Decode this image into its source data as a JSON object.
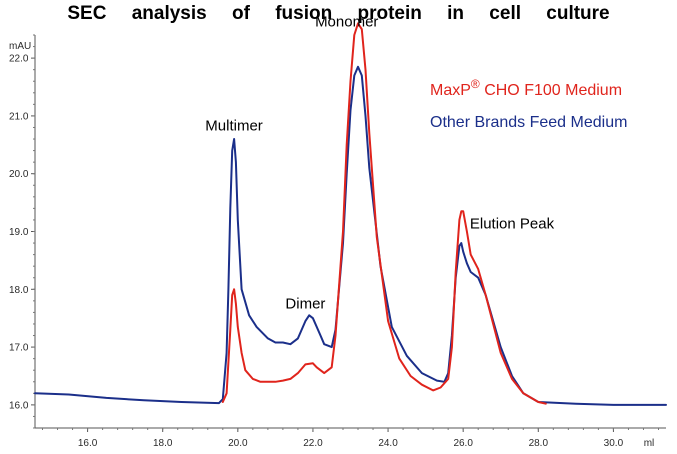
{
  "title": "SEC analysis of fusion protein in cell culture",
  "chart_data": {
    "type": "line",
    "title": "SEC analysis of fusion protein in cell culture",
    "xlabel": "ml",
    "ylabel": "mAU",
    "xlim": [
      14.6,
      31.4
    ],
    "ylim": [
      15.6,
      22.4
    ],
    "x_ticks": [
      "16.0",
      "18.0",
      "20.0",
      "22.0",
      "24.0",
      "26.0",
      "28.0",
      "30.0"
    ],
    "y_ticks": [
      "16.0",
      "17.0",
      "18.0",
      "19.0",
      "20.0",
      "21.0",
      "22.0"
    ],
    "legend": {
      "placement": "top-right",
      "entries": [
        {
          "prefix": "MaxP",
          "sup": "®",
          "suffix": " CHO F100 Medium",
          "color": "#e0241c"
        },
        {
          "prefix": "Other Brands Feed Medium",
          "sup": "",
          "suffix": "",
          "color": "#1b2f8a"
        }
      ]
    },
    "annotations": [
      {
        "text": "Multimer",
        "x": 19.9,
        "y": 20.75
      },
      {
        "text": "Dimer",
        "x": 21.8,
        "y": 17.67
      },
      {
        "text": "Monomer",
        "x": 22.9,
        "y": 22.55
      },
      {
        "text": "Elution Peak",
        "x": 27.3,
        "y": 19.05
      }
    ],
    "series": [
      {
        "name": "MaxP® CHO F100 Medium",
        "color": "#e0241c",
        "x": [
          19.6,
          19.7,
          19.8,
          19.85,
          19.9,
          19.95,
          20.0,
          20.1,
          20.2,
          20.4,
          20.6,
          20.8,
          21.0,
          21.2,
          21.4,
          21.6,
          21.8,
          22.0,
          22.1,
          22.3,
          22.5,
          22.6,
          22.8,
          22.9,
          23.0,
          23.1,
          23.2,
          23.3,
          23.4,
          23.5,
          23.7,
          24.0,
          24.3,
          24.6,
          24.9,
          25.2,
          25.4,
          25.6,
          25.7,
          25.8,
          25.9,
          25.95,
          26.0,
          26.1,
          26.2,
          26.4,
          26.6,
          26.8,
          27.0,
          27.3,
          27.6,
          28.0,
          28.2
        ],
        "y": [
          16.05,
          16.2,
          17.3,
          17.9,
          18.0,
          17.75,
          17.35,
          16.9,
          16.6,
          16.45,
          16.4,
          16.4,
          16.4,
          16.42,
          16.45,
          16.55,
          16.7,
          16.72,
          16.65,
          16.55,
          16.65,
          17.2,
          19.0,
          20.5,
          21.6,
          22.4,
          22.6,
          22.5,
          21.8,
          20.7,
          18.9,
          17.45,
          16.8,
          16.5,
          16.35,
          16.25,
          16.3,
          16.45,
          17.0,
          18.3,
          19.2,
          19.35,
          19.35,
          19.0,
          18.6,
          18.35,
          17.9,
          17.4,
          16.9,
          16.45,
          16.2,
          16.05,
          16.02
        ]
      },
      {
        "name": "Other Brands Feed Medium",
        "color": "#1b2f8a",
        "x": [
          14.6,
          15.5,
          16.5,
          17.5,
          18.5,
          19.5,
          19.6,
          19.7,
          19.75,
          19.8,
          19.85,
          19.9,
          19.95,
          20.0,
          20.1,
          20.3,
          20.5,
          20.8,
          21.0,
          21.2,
          21.4,
          21.6,
          21.8,
          21.9,
          22.0,
          22.2,
          22.3,
          22.5,
          22.6,
          22.8,
          22.9,
          23.0,
          23.1,
          23.2,
          23.3,
          23.4,
          23.5,
          23.8,
          24.1,
          24.5,
          24.9,
          25.3,
          25.5,
          25.6,
          25.7,
          25.8,
          25.9,
          25.95,
          26.0,
          26.1,
          26.2,
          26.4,
          26.6,
          26.8,
          27.0,
          27.3,
          27.6,
          28.0,
          29.0,
          30.0,
          31.0,
          31.4
        ],
        "y": [
          16.2,
          16.18,
          16.12,
          16.08,
          16.05,
          16.03,
          16.1,
          16.9,
          18.0,
          19.4,
          20.4,
          20.6,
          20.2,
          19.2,
          18.0,
          17.55,
          17.35,
          17.15,
          17.08,
          17.08,
          17.05,
          17.15,
          17.45,
          17.55,
          17.5,
          17.2,
          17.05,
          17.0,
          17.3,
          18.8,
          20.0,
          21.1,
          21.7,
          21.85,
          21.7,
          21.0,
          20.1,
          18.4,
          17.35,
          16.85,
          16.55,
          16.42,
          16.4,
          16.55,
          17.2,
          18.2,
          18.75,
          18.8,
          18.65,
          18.45,
          18.3,
          18.2,
          17.9,
          17.45,
          17.0,
          16.5,
          16.2,
          16.05,
          16.02,
          16.0,
          16.0,
          16.0
        ]
      }
    ]
  }
}
